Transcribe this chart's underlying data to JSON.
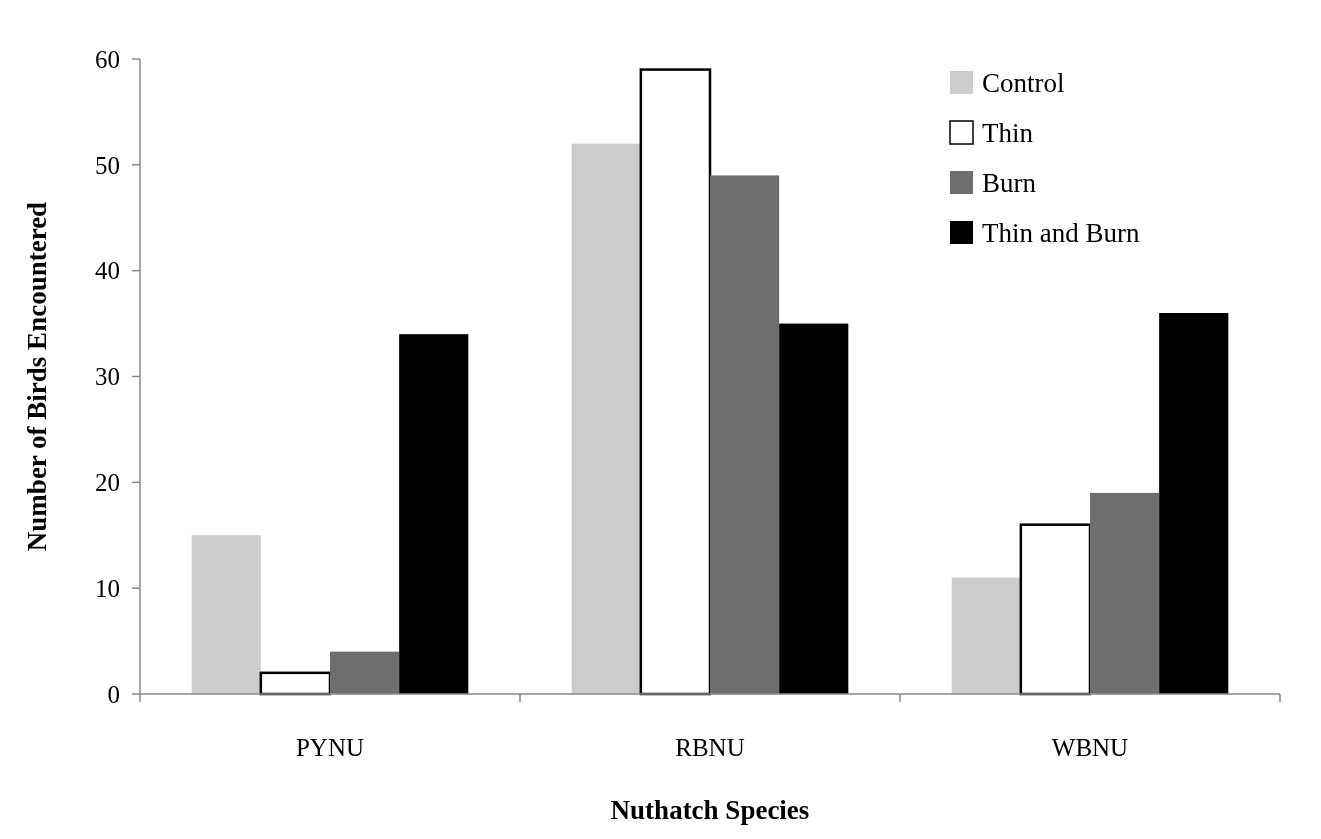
{
  "chart_data": {
    "type": "bar",
    "xlabel": "Nuthatch Species",
    "ylabel": "Number of Birds Encountered",
    "categories": [
      "PYNU",
      "RBNU",
      "WBNU"
    ],
    "series": [
      {
        "name": "Control",
        "color": "#cccccc",
        "values": [
          15,
          52,
          11
        ]
      },
      {
        "name": "Thin",
        "color": "#ffffff",
        "values": [
          2,
          59,
          16
        ]
      },
      {
        "name": "Burn",
        "color": "#6e6e6e",
        "values": [
          4,
          49,
          19
        ]
      },
      {
        "name": "Thin and Burn",
        "color": "#000000",
        "values": [
          34,
          35,
          36
        ]
      }
    ],
    "ylim": [
      0,
      60
    ],
    "yticks": [
      0,
      10,
      20,
      30,
      40,
      50,
      60
    ],
    "grid": false,
    "legend": "top right"
  }
}
